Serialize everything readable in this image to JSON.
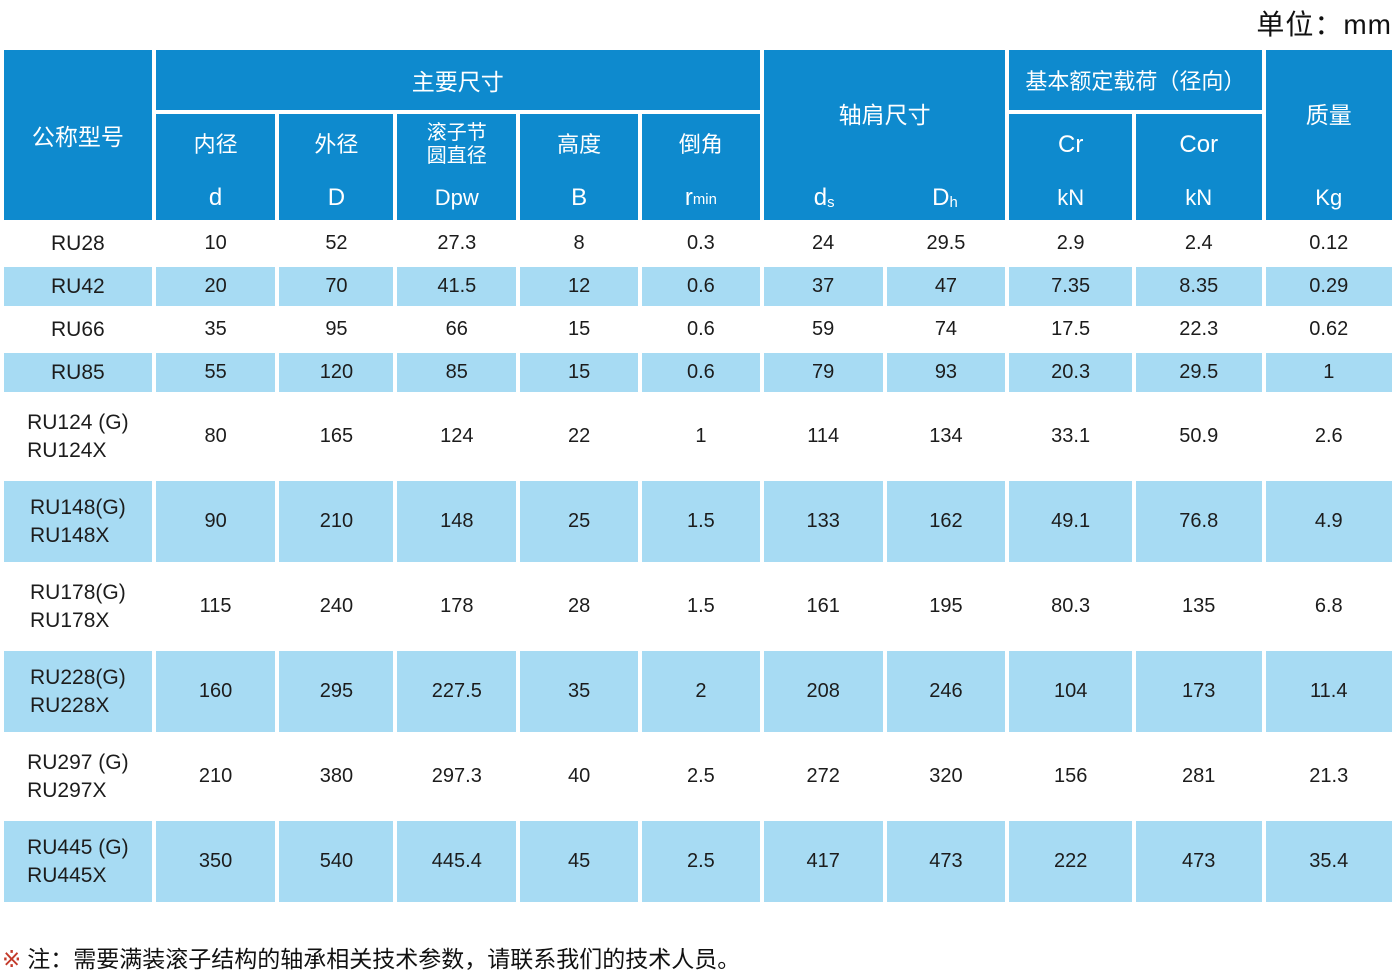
{
  "unit_label": "单位：mm",
  "colors": {
    "header_blue": "#0e8ace",
    "row_blue": "#a7dbf3",
    "note_red": "#c33a2a",
    "text": "#1c1c1c"
  },
  "table": {
    "header": {
      "model": "公称型号",
      "main_dims_group": "主要尺寸",
      "shoulder_group": "轴肩尺寸",
      "load_group": "基本额定载荷（径向）",
      "mass_group": "质量",
      "inner_dia_name": "内径",
      "inner_dia_symbol": "d",
      "outer_dia_name": "外径",
      "outer_dia_symbol": "D",
      "pitch_dia_name_line1": "滚子节",
      "pitch_dia_name_line2": "圆直径",
      "pitch_dia_symbol": "Dpw",
      "height_name": "高度",
      "height_symbol": "B",
      "chamfer_name": "倒角",
      "chamfer_symbol_base": "r",
      "chamfer_symbol_sub": "min",
      "ds_base": "d",
      "ds_sub": "s",
      "dh_base": "D",
      "dh_sub": "h",
      "cr_name": "Cr",
      "cr_unit": "kN",
      "cor_name": "Cor",
      "cor_unit": "kN",
      "mass_unit": "Kg"
    },
    "rows": [
      {
        "model": [
          "RU28"
        ],
        "values": [
          "10",
          "52",
          "27.3",
          "8",
          "0.3",
          "24",
          "29.5",
          "2.9",
          "2.4",
          "0.12"
        ]
      },
      {
        "model": [
          "RU42"
        ],
        "values": [
          "20",
          "70",
          "41.5",
          "12",
          "0.6",
          "37",
          "47",
          "7.35",
          "8.35",
          "0.29"
        ]
      },
      {
        "model": [
          "RU66"
        ],
        "values": [
          "35",
          "95",
          "66",
          "15",
          "0.6",
          "59",
          "74",
          "17.5",
          "22.3",
          "0.62"
        ]
      },
      {
        "model": [
          "RU85"
        ],
        "values": [
          "55",
          "120",
          "85",
          "15",
          "0.6",
          "79",
          "93",
          "20.3",
          "29.5",
          "1"
        ]
      },
      {
        "model": [
          "RU124 (G)",
          "RU124X"
        ],
        "values": [
          "80",
          "165",
          "124",
          "22",
          "1",
          "114",
          "134",
          "33.1",
          "50.9",
          "2.6"
        ]
      },
      {
        "model": [
          "RU148(G)",
          "RU148X"
        ],
        "values": [
          "90",
          "210",
          "148",
          "25",
          "1.5",
          "133",
          "162",
          "49.1",
          "76.8",
          "4.9"
        ]
      },
      {
        "model": [
          "RU178(G)",
          "RU178X"
        ],
        "values": [
          "115",
          "240",
          "178",
          "28",
          "1.5",
          "161",
          "195",
          "80.3",
          "135",
          "6.8"
        ]
      },
      {
        "model": [
          "RU228(G)",
          "RU228X"
        ],
        "values": [
          "160",
          "295",
          "227.5",
          "35",
          "2",
          "208",
          "246",
          "104",
          "173",
          "11.4"
        ]
      },
      {
        "model": [
          "RU297 (G)",
          "RU297X"
        ],
        "values": [
          "210",
          "380",
          "297.3",
          "40",
          "2.5",
          "272",
          "320",
          "156",
          "281",
          "21.3"
        ]
      },
      {
        "model": [
          "RU445 (G)",
          "RU445X"
        ],
        "values": [
          "350",
          "540",
          "445.4",
          "45",
          "2.5",
          "417",
          "473",
          "222",
          "473",
          "35.4"
        ]
      }
    ]
  },
  "note": {
    "marker": "※",
    "text": "注：需要满装滚子结构的轴承相关技术参数，请联系我们的技术人员。"
  }
}
